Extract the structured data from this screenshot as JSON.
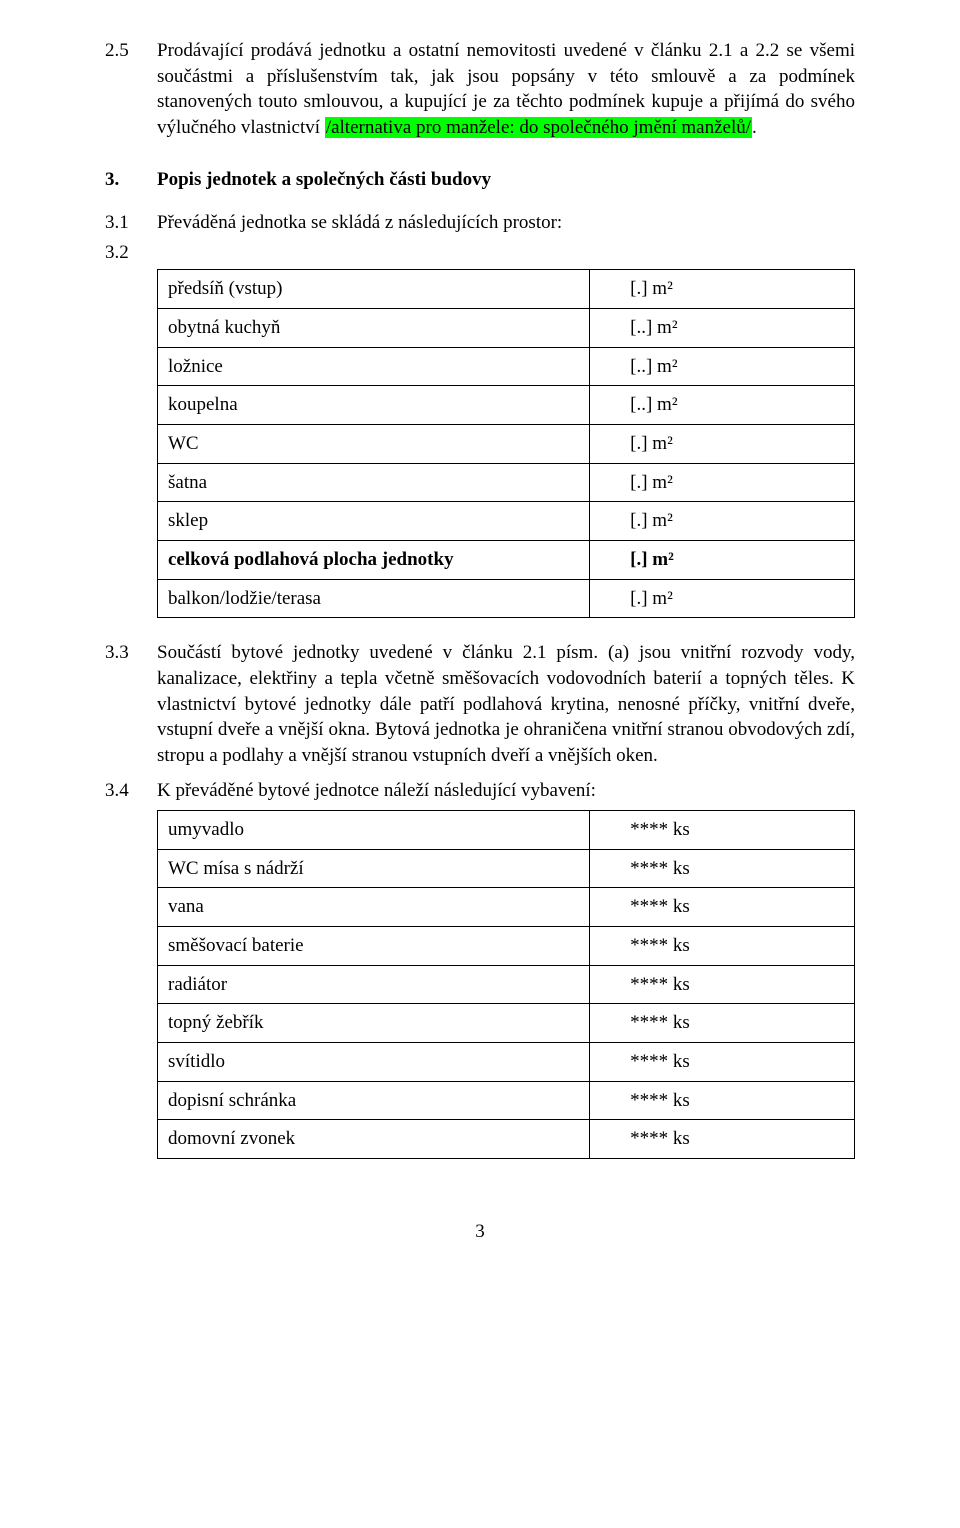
{
  "p25": {
    "num": "2.5",
    "pre": "Prodávající prodává jednotku a ostatní nemovitosti uvedené v článku 2.1 a 2.2 se všemi součástmi a příslušenstvím tak, jak jsou popsány v této smlouvě a za podmínek stanovených touto smlouvou, a kupující je za těchto podmínek kupuje a přijímá do svého výlučného vlastnictví ",
    "hl": "/alternativa pro manžele: do společného jmění manželů/",
    "post": "."
  },
  "h3": {
    "num": "3.",
    "title": "Popis jednotek a společných části budovy"
  },
  "p31": {
    "num": "3.1",
    "text": "Převáděná jednotka se skládá z následujících prostor:"
  },
  "p32": {
    "num": "3.2"
  },
  "rooms": {
    "rows": [
      {
        "label": "předsíň (vstup)",
        "value": "[.] m²",
        "bold": false
      },
      {
        "label": "obytná kuchyň",
        "value": "[..] m²",
        "bold": false
      },
      {
        "label": "ložnice",
        "value": "[..] m²",
        "bold": false
      },
      {
        "label": "koupelna",
        "value": "[..] m²",
        "bold": false
      },
      {
        "label": "WC",
        "value": "[.] m²",
        "bold": false
      },
      {
        "label": "šatna",
        "value": "[.] m²",
        "bold": false
      },
      {
        "label": "sklep",
        "value": " [.] m²",
        "bold": false
      },
      {
        "label": "celková podlahová plocha jednotky",
        "value": "[.] m²",
        "bold": true
      },
      {
        "label": "balkon/lodžie/terasa",
        "value": "[.] m²",
        "bold": false
      }
    ]
  },
  "p33": {
    "num": "3.3",
    "text": "Součástí bytové jednotky uvedené v článku 2.1 písm. (a) jsou vnitřní rozvody vody, kanalizace, elektřiny a tepla včetně směšovacích vodovodních baterií a topných těles. K vlastnictví bytové jednotky dále patří podlahová krytina, nenosné příčky, vnitřní dveře, vstupní dveře a vnější okna. Bytová jednotka je ohraničena vnitřní stranou obvodových zdí, stropu a podlahy a vnější stranou vstupních dveří a vnějších oken."
  },
  "p34": {
    "num": "3.4",
    "text": "K převáděné bytové jednotce náleží následující vybavení:"
  },
  "equip": {
    "rows": [
      {
        "label": "umyvadlo",
        "value": "**** ks"
      },
      {
        "label": "WC mísa s nádrží",
        "value": "**** ks"
      },
      {
        "label": "vana",
        "value": "**** ks"
      },
      {
        "label": "směšovací baterie",
        "value": "**** ks"
      },
      {
        "label": "radiátor",
        "value": "**** ks"
      },
      {
        "label": "topný žebřík",
        "value": "**** ks"
      },
      {
        "label": "svítidlo",
        "value": "**** ks"
      },
      {
        "label": "dopisní schránka",
        "value": "**** ks"
      },
      {
        "label": "domovní zvonek",
        "value": "**** ks"
      }
    ]
  },
  "pagenum": "3"
}
